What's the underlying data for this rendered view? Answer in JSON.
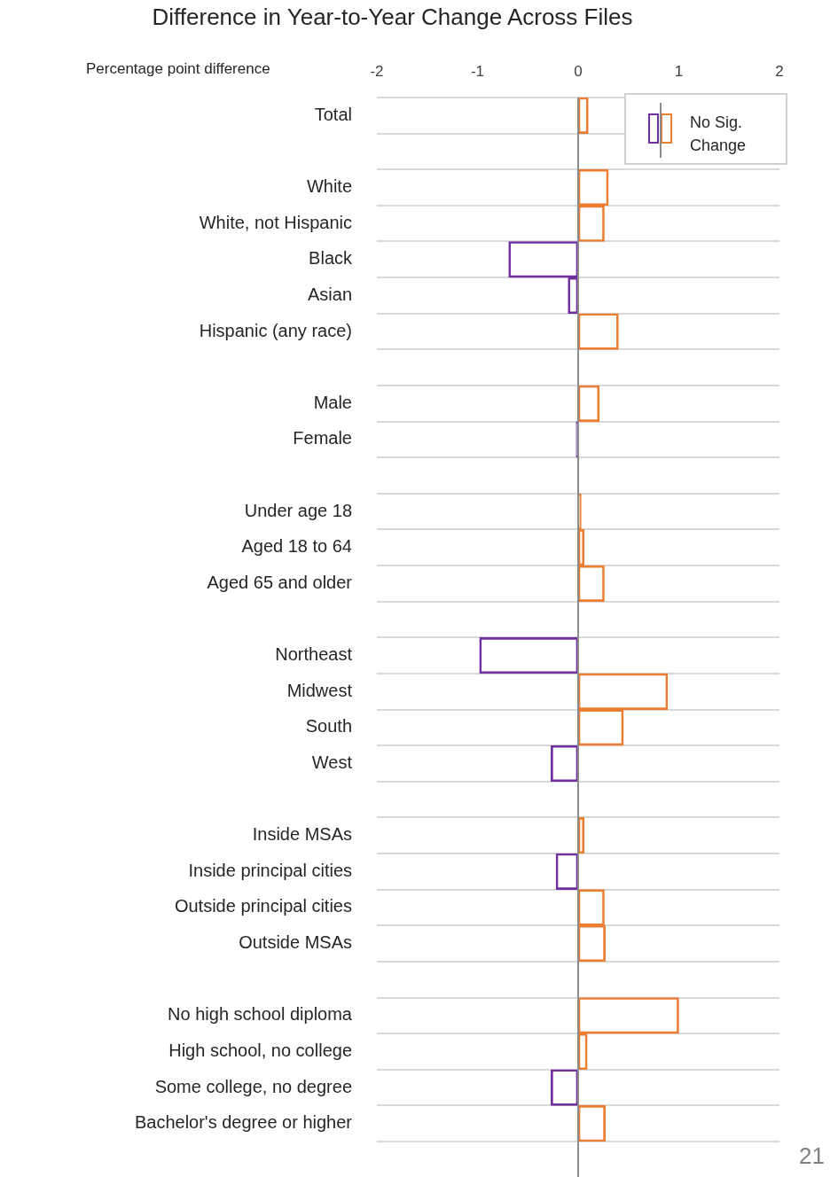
{
  "chart_data": {
    "type": "bar",
    "orientation": "horizontal",
    "title": "Difference in Year-to-Year Change Across Files",
    "xlabel": "Percentage point difference",
    "categories": [
      "Total",
      null,
      "White",
      "White, not Hispanic",
      "Black",
      "Asian",
      "Hispanic (any race)",
      null,
      "Male",
      "Female",
      null,
      "Under age 18",
      "Aged 18 to 64",
      "Aged 65 and older",
      null,
      "Northeast",
      "Midwest",
      "South",
      "West",
      null,
      "Inside MSAs",
      "Inside principal cities",
      "Outside principal cities",
      "Outside MSAs",
      null,
      "No high school diploma",
      "High school, no college",
      "Some college, no degree",
      "Bachelor's degree or higher"
    ],
    "series": [
      {
        "name": "No Sig. Change",
        "values": [
          0.1,
          null,
          0.3,
          0.26,
          -0.69,
          -0.1,
          0.4,
          null,
          0.21,
          -0.02,
          null,
          0.03,
          0.06,
          0.26,
          null,
          -0.98,
          0.89,
          0.45,
          -0.27,
          null,
          0.06,
          -0.22,
          0.26,
          0.27,
          null,
          1.0,
          0.09,
          -0.27,
          0.27
        ],
        "colors": [
          "#ed7d31",
          "#ed7d31",
          "#ed7d31",
          "#ed7d31",
          "#7030a0",
          "#7030a0",
          "#ed7d31",
          "#ed7d31",
          "#ed7d31",
          "#7030a0",
          "#ed7d31",
          "#ed7d31",
          "#ed7d31",
          "#ed7d31",
          "#ed7d31",
          "#7030a0",
          "#ed7d31",
          "#ed7d31",
          "#7030a0",
          "#ed7d31",
          "#ed7d31",
          "#7030a0",
          "#ed7d31",
          "#ed7d31",
          "#ed7d31",
          "#ed7d31",
          "#ed7d31",
          "#7030a0",
          "#ed7d31"
        ]
      }
    ],
    "xlim": [
      -2,
      2
    ],
    "xticks": [
      -2,
      -1,
      0,
      1,
      2
    ],
    "grid": "y",
    "legend": "top right",
    "annotations": [
      "21"
    ]
  }
}
